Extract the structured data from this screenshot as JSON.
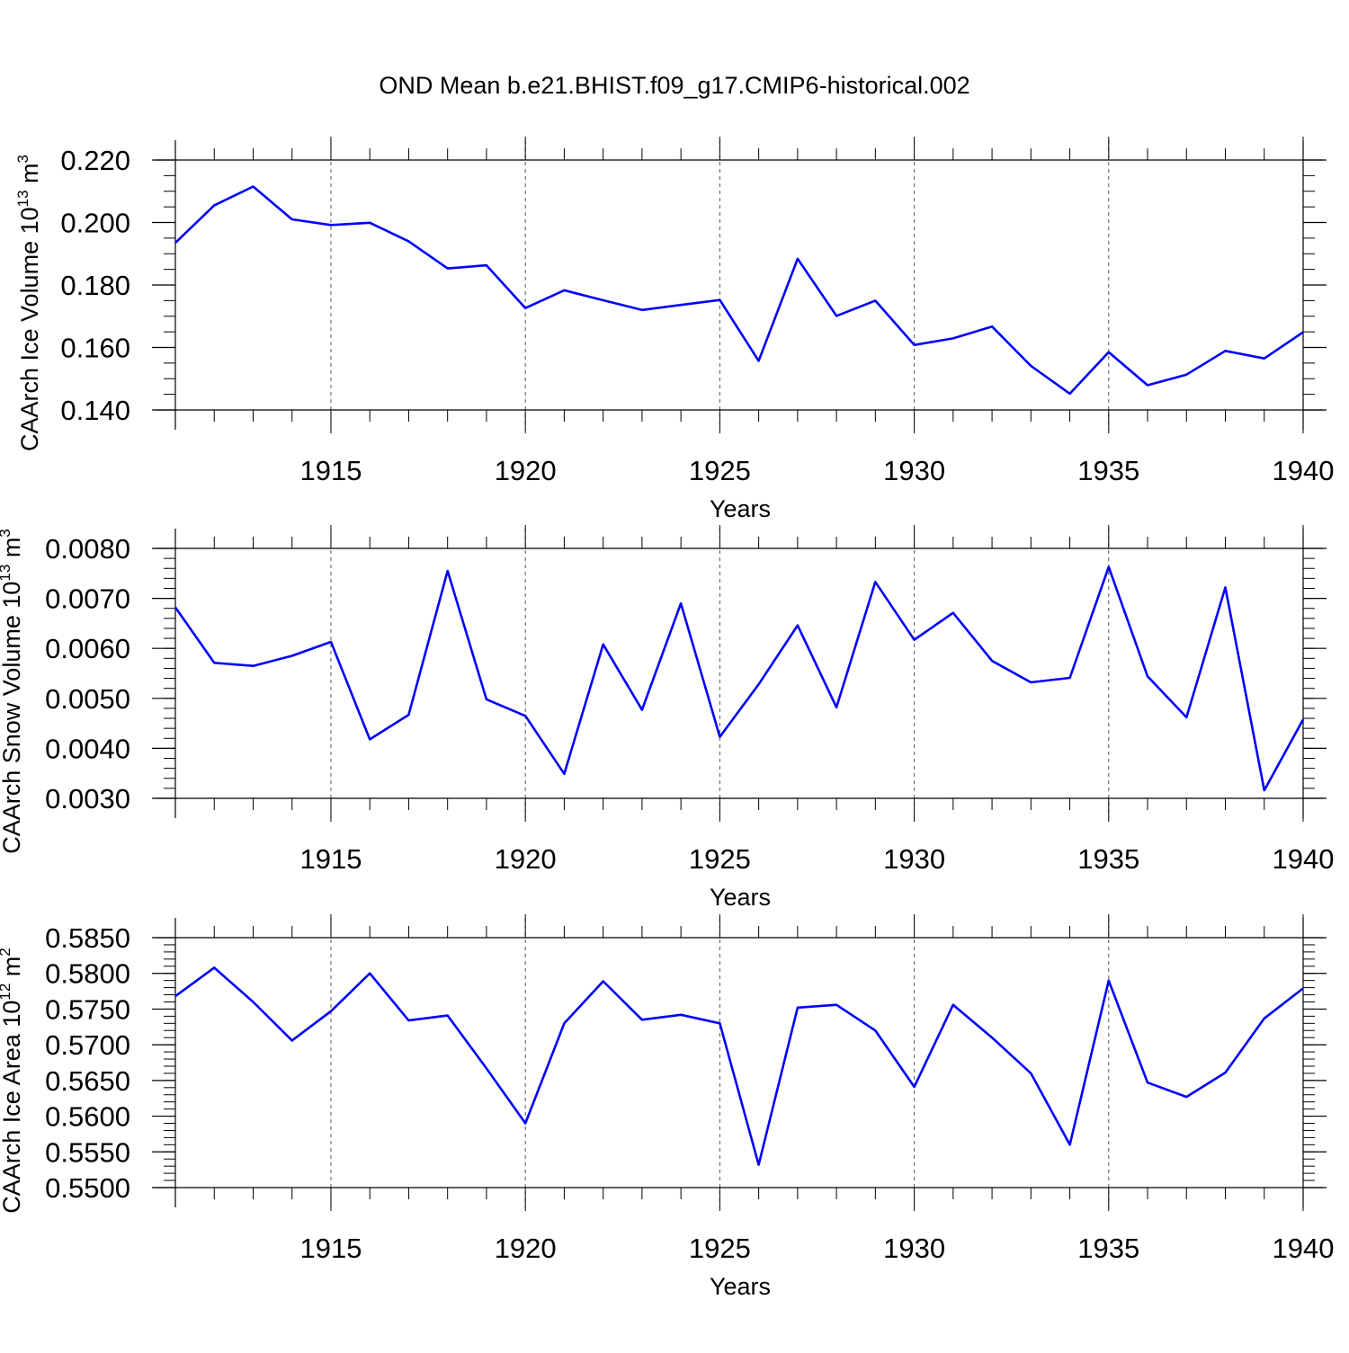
{
  "title": "OND Mean b.e21.BHIST.f09_g17.CMIP6-historical.002",
  "colors": {
    "line": "#0000ff",
    "axis": "#000000",
    "grid": "#555555"
  },
  "chart_data": [
    {
      "type": "line",
      "ylabel_main": "CAArch Ice Volume 10",
      "ylabel_exp": "13",
      "ylabel_unit": " m",
      "ylabel_unit_exp": "3",
      "xlabel": "Years",
      "xlim": [
        1911,
        1940
      ],
      "ylim": [
        0.14,
        0.22
      ],
      "yticks": [
        0.14,
        0.16,
        0.18,
        0.2,
        0.22
      ],
      "ytick_labels": [
        "0.140",
        "0.160",
        "0.180",
        "0.200",
        "0.220"
      ],
      "yminor_step": 0.005,
      "xticks": [
        1915,
        1920,
        1925,
        1930,
        1935,
        1940
      ],
      "xtick_labels": [
        "1915",
        "1920",
        "1925",
        "1930",
        "1935",
        "1940"
      ],
      "grid": "vertical dashed at major x ticks",
      "series": [
        {
          "x": [
            1911,
            1912,
            1913,
            1914,
            1915,
            1916,
            1917,
            1918,
            1919,
            1920,
            1921,
            1922,
            1923,
            1924,
            1925,
            1926,
            1927,
            1928,
            1929,
            1930,
            1931,
            1932,
            1933,
            1934,
            1935,
            1936,
            1937,
            1938,
            1939,
            1940
          ],
          "values": [
            0.1935,
            0.2055,
            0.2115,
            0.201,
            0.1992,
            0.1999,
            0.194,
            0.1853,
            0.1863,
            0.1726,
            0.1783,
            0.1751,
            0.172,
            0.1736,
            0.1752,
            0.1557,
            0.1884,
            0.1701,
            0.175,
            0.1608,
            0.1629,
            0.1667,
            0.1541,
            0.1452,
            0.1585,
            0.1479,
            0.1513,
            0.1589,
            0.1565,
            0.1649
          ]
        }
      ]
    },
    {
      "type": "line",
      "ylabel_main": "CAArch Snow Volume 10",
      "ylabel_exp": "13",
      "ylabel_unit": " m",
      "ylabel_unit_exp": "3",
      "xlabel": "Years",
      "xlim": [
        1911,
        1940
      ],
      "ylim": [
        0.003,
        0.008
      ],
      "yticks": [
        0.003,
        0.004,
        0.005,
        0.006,
        0.007,
        0.008
      ],
      "ytick_labels": [
        "0.0030",
        "0.0040",
        "0.0050",
        "0.0060",
        "0.0070",
        "0.0080"
      ],
      "yminor_step": 0.0002,
      "xticks": [
        1915,
        1920,
        1925,
        1930,
        1935,
        1940
      ],
      "xtick_labels": [
        "1915",
        "1920",
        "1925",
        "1930",
        "1935",
        "1940"
      ],
      "grid": "vertical dashed at major x ticks",
      "series": [
        {
          "x": [
            1911,
            1912,
            1913,
            1914,
            1915,
            1916,
            1917,
            1918,
            1919,
            1920,
            1921,
            1922,
            1923,
            1924,
            1925,
            1926,
            1927,
            1928,
            1929,
            1930,
            1931,
            1932,
            1933,
            1934,
            1935,
            1936,
            1937,
            1938,
            1939,
            1940
          ],
          "values": [
            0.00682,
            0.00571,
            0.00565,
            0.00585,
            0.00613,
            0.00418,
            0.00467,
            0.00755,
            0.00498,
            0.00465,
            0.00349,
            0.00608,
            0.00477,
            0.0069,
            0.00423,
            0.00528,
            0.00646,
            0.00482,
            0.00733,
            0.00617,
            0.00671,
            0.00575,
            0.00532,
            0.00541,
            0.00763,
            0.00544,
            0.00462,
            0.00722,
            0.00316,
            0.00458
          ]
        }
      ]
    },
    {
      "type": "line",
      "ylabel_main": "CAArch Ice Area 10",
      "ylabel_exp": "12",
      "ylabel_unit": " m",
      "ylabel_unit_exp": "2",
      "xlabel": "Years",
      "xlim": [
        1911,
        1940
      ],
      "ylim": [
        0.55,
        0.585
      ],
      "yticks": [
        0.55,
        0.555,
        0.56,
        0.565,
        0.57,
        0.575,
        0.58,
        0.585
      ],
      "ytick_labels": [
        "0.5500",
        "0.5550",
        "0.5600",
        "0.5650",
        "0.5700",
        "0.5750",
        "0.5800",
        "0.5850"
      ],
      "yminor_step": 0.001,
      "xticks": [
        1915,
        1920,
        1925,
        1930,
        1935,
        1940
      ],
      "xtick_labels": [
        "1915",
        "1920",
        "1925",
        "1930",
        "1935",
        "1940"
      ],
      "grid": "vertical dashed at major x ticks",
      "series": [
        {
          "x": [
            1911,
            1912,
            1913,
            1914,
            1915,
            1916,
            1917,
            1918,
            1919,
            1920,
            1921,
            1922,
            1923,
            1924,
            1925,
            1926,
            1927,
            1928,
            1929,
            1930,
            1931,
            1932,
            1933,
            1934,
            1935,
            1936,
            1937,
            1938,
            1939,
            1940
          ],
          "values": [
            0.5768,
            0.5808,
            0.576,
            0.5706,
            0.5747,
            0.58,
            0.5734,
            0.5741,
            0.5667,
            0.559,
            0.573,
            0.5789,
            0.5735,
            0.5742,
            0.573,
            0.5532,
            0.5752,
            0.5756,
            0.572,
            0.5641,
            0.5756,
            0.571,
            0.566,
            0.556,
            0.579,
            0.5647,
            0.5627,
            0.5661,
            0.5737,
            0.5779
          ]
        }
      ]
    }
  ]
}
